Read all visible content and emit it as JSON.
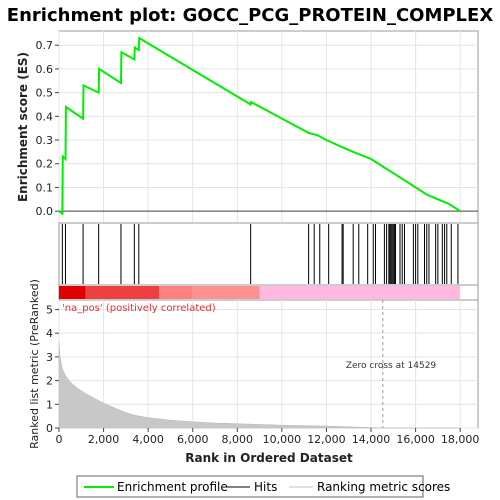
{
  "chart_data": {
    "type": "line",
    "title": "Enrichment plot: GOCC_PCG_PROTEIN_COMPLEX",
    "ylabel_top": "Enrichment score (ES)",
    "ylabel_bottom": "Ranked list metric (PreRanked)",
    "xlabel": "Rank in Ordered Dataset",
    "xlim": [
      0,
      18800
    ],
    "ylim_es": [
      -0.05,
      0.76
    ],
    "ylim_metric": [
      0,
      5.4
    ],
    "xticks": [
      0,
      2000,
      4000,
      6000,
      8000,
      10000,
      12000,
      14000,
      16000,
      18000
    ],
    "xtick_labels": [
      "0",
      "2,000",
      "4,000",
      "6,000",
      "8,000",
      "10,000",
      "12,000",
      "14,000",
      "16,000",
      "18,000"
    ],
    "yticks_es": [
      0.0,
      0.1,
      0.2,
      0.3,
      0.4,
      0.5,
      0.6,
      0.7
    ],
    "ytick_labels_es": [
      "0.0",
      "0.1",
      "0.2",
      "0.3",
      "0.4",
      "0.5",
      "0.6",
      "0.7"
    ],
    "yticks_metric": [
      0,
      1,
      2,
      3,
      4,
      5
    ],
    "ytick_labels_metric": [
      "0",
      "1",
      "2",
      "3",
      "4",
      "5"
    ],
    "grid": true,
    "legend_position": "bottom",
    "series": [
      {
        "name": "Enrichment profile",
        "color": "#00ee00",
        "x": [
          0,
          150,
          170,
          290,
          310,
          1080,
          1100,
          1780,
          1800,
          2780,
          2800,
          3380,
          3400,
          3580,
          3600,
          8600,
          8620,
          11200,
          11600,
          12000,
          12700,
          13200,
          14000,
          14500,
          15000,
          15500,
          16000,
          16500,
          17000,
          17500,
          18000
        ],
        "y": [
          0.0,
          -0.01,
          0.23,
          0.22,
          0.44,
          0.39,
          0.53,
          0.5,
          0.6,
          0.54,
          0.67,
          0.64,
          0.69,
          0.68,
          0.73,
          0.45,
          0.46,
          0.33,
          0.32,
          0.3,
          0.27,
          0.25,
          0.22,
          0.19,
          0.16,
          0.13,
          0.1,
          0.07,
          0.05,
          0.03,
          0.0
        ]
      },
      {
        "name": "Hits",
        "color": "#000000",
        "positions": [
          150,
          290,
          1080,
          1780,
          2780,
          3380,
          3580,
          8600,
          11200,
          11450,
          11700,
          12100,
          12700,
          12750,
          13200,
          13450,
          13850,
          14100,
          14200,
          14600,
          14700,
          14800,
          14850,
          14900,
          14950,
          15000,
          15050,
          15100,
          15300,
          15400,
          15500,
          15900,
          16000,
          16100,
          16400,
          16500,
          16600,
          16900,
          17000,
          17200,
          17300,
          17400,
          17600,
          17900
        ]
      },
      {
        "name": "Ranking metric scores",
        "color": "#c0c0c0",
        "x": [
          0,
          50,
          150,
          300,
          500,
          800,
          1200,
          1600,
          2000,
          2500,
          3000,
          3500,
          4000,
          5000,
          6000,
          7000,
          8000,
          9000,
          10000,
          11000,
          12000,
          13000,
          14000,
          14529,
          15000,
          16000,
          17000,
          18000
        ],
        "y": [
          3.6,
          3.0,
          2.5,
          2.2,
          1.95,
          1.7,
          1.45,
          1.25,
          1.05,
          0.85,
          0.65,
          0.52,
          0.44,
          0.33,
          0.26,
          0.21,
          0.18,
          0.15,
          0.12,
          0.1,
          0.08,
          0.05,
          0.02,
          0.0,
          0.0,
          0.0,
          0.0,
          0.0
        ]
      }
    ],
    "annotations": {
      "na_pos": "'na_pos' (positively correlated)",
      "zero_cross": "Zero cross at 14529",
      "zero_cross_x": 14529
    },
    "colors": {
      "profile": "#00ee00",
      "heat_dark_red": "#e00000",
      "heat_red": "#ee4040",
      "heat_pink": "#ff8080",
      "heat_light_pink": "#ffb8e0",
      "metric_fill": "#c8c8c8"
    }
  }
}
